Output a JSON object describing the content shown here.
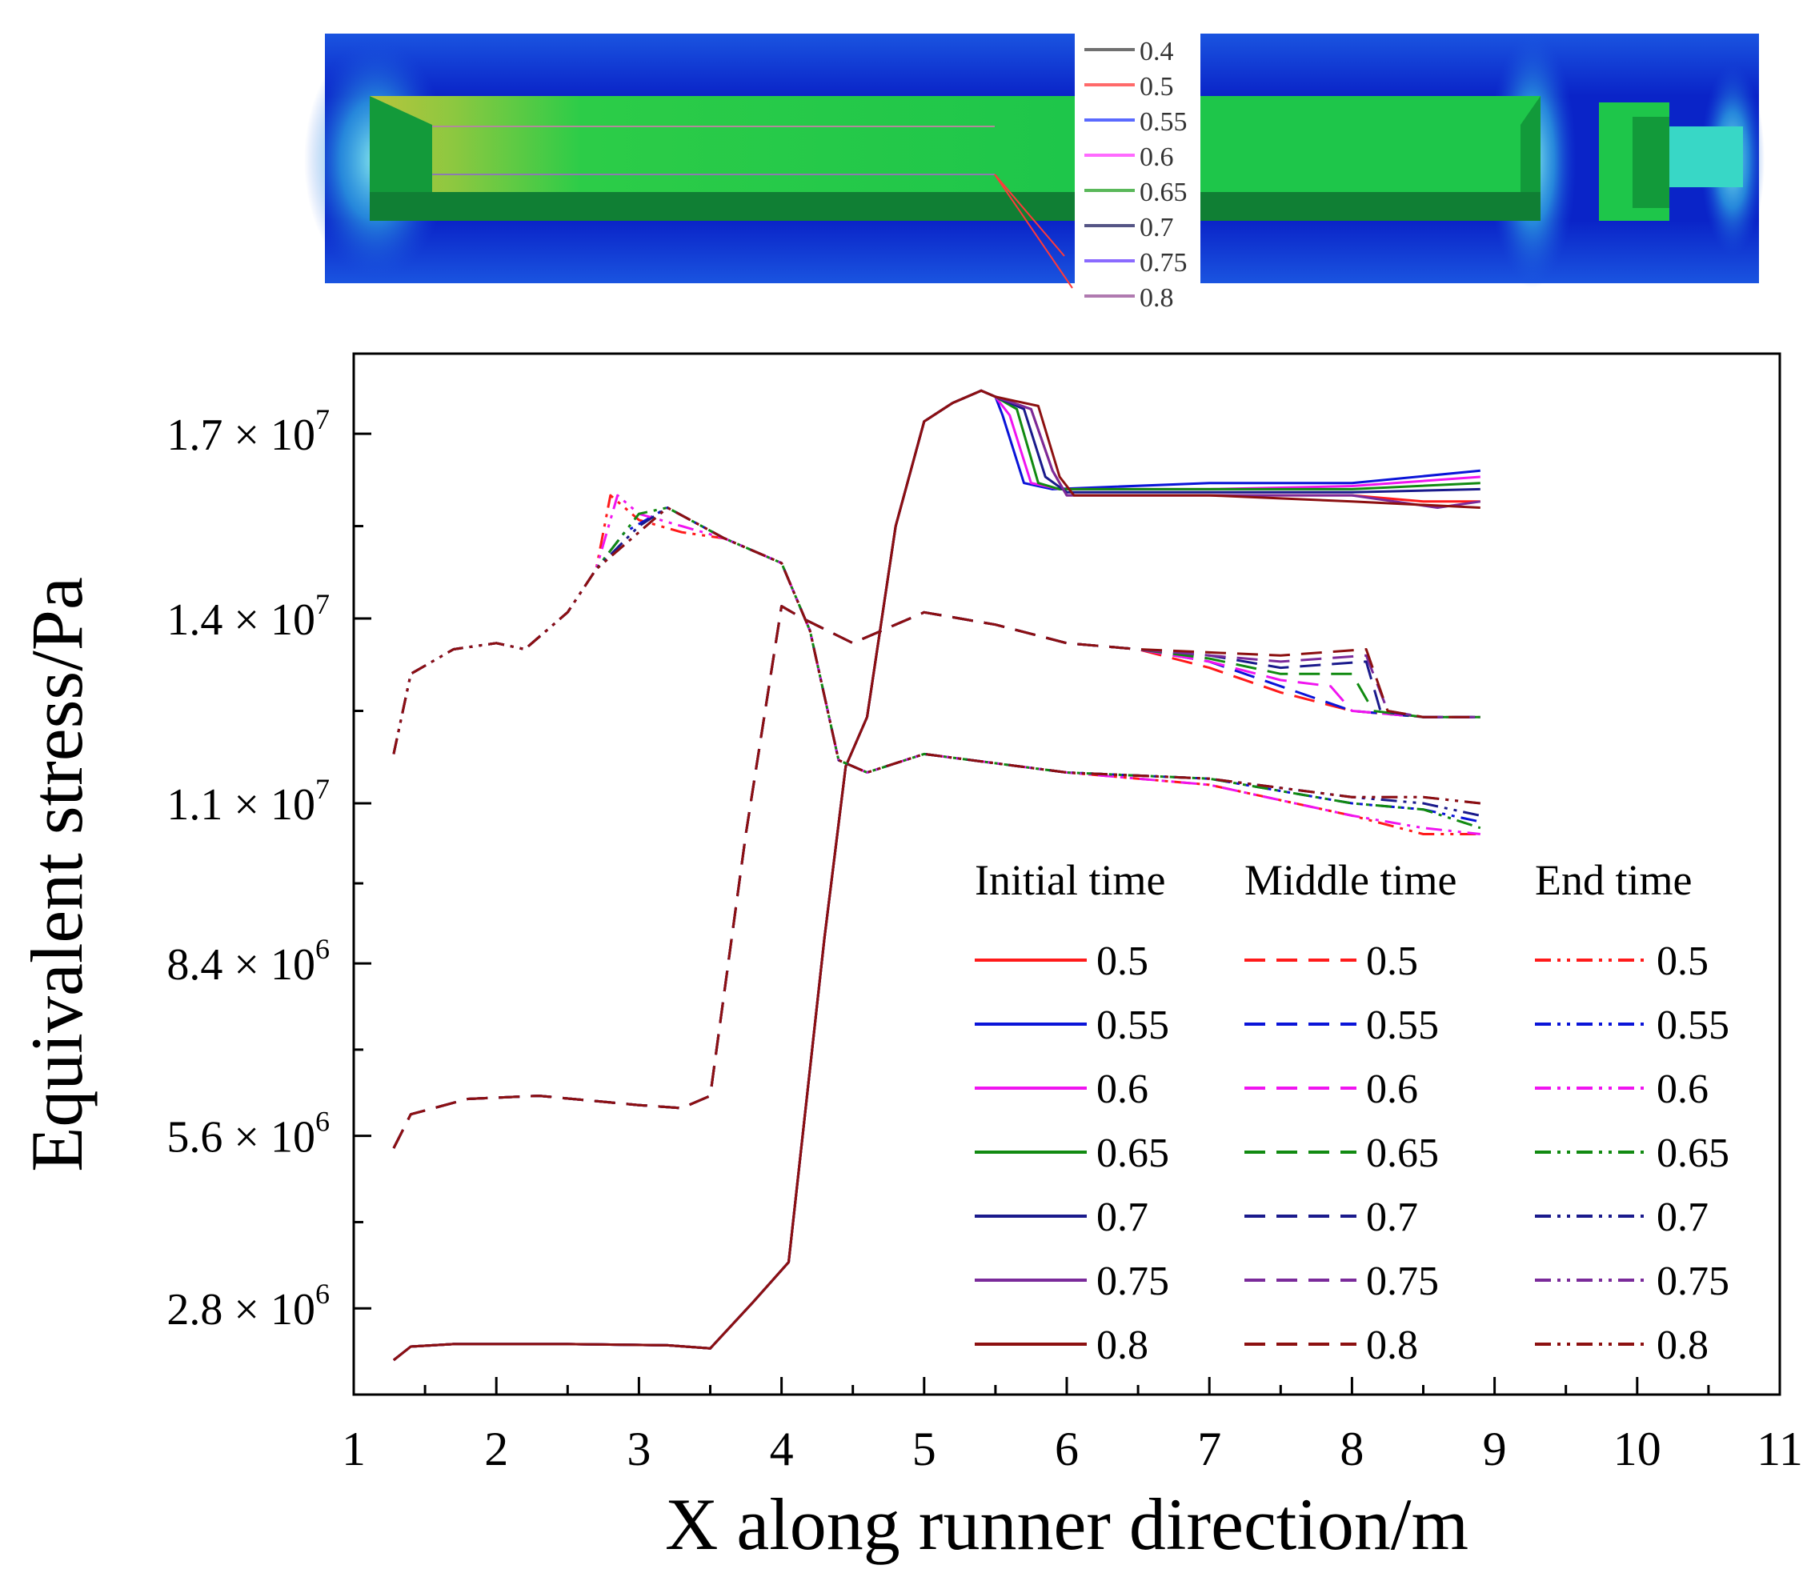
{
  "chart_data": {
    "type": "line",
    "xlabel": "X along runner direction/m",
    "ylabel": "Equivalent stress/Pa",
    "xlim": [
      1,
      11
    ],
    "ylim": [
      1400000.0,
      18300000.0
    ],
    "x_ticks": [
      {
        "value": 1,
        "label": "1"
      },
      {
        "value": 2,
        "label": "2"
      },
      {
        "value": 3,
        "label": "3"
      },
      {
        "value": 4,
        "label": "4"
      },
      {
        "value": 5,
        "label": "5"
      },
      {
        "value": 6,
        "label": "6"
      },
      {
        "value": 7,
        "label": "7"
      },
      {
        "value": 8,
        "label": "8"
      },
      {
        "value": 9,
        "label": "9"
      },
      {
        "value": 10,
        "label": "10"
      },
      {
        "value": 11,
        "label": "11"
      }
    ],
    "y_ticks": [
      {
        "value": 2800000,
        "mant": "2.8",
        "exp": "6"
      },
      {
        "value": 5600000,
        "mant": "5.6",
        "exp": "6"
      },
      {
        "value": 8400000,
        "mant": "8.4",
        "exp": "6"
      },
      {
        "value": 11000000,
        "mant": "1.1",
        "exp": "7"
      },
      {
        "value": 14000000,
        "mant": "1.4",
        "exp": "7"
      },
      {
        "value": 17000000,
        "mant": "1.7",
        "exp": "7"
      }
    ],
    "times_symbol": "×",
    "exp_base": "10",
    "grid": false,
    "legend_position": "bottom-right",
    "levels": [
      "0.5",
      "0.55",
      "0.6",
      "0.65",
      "0.7",
      "0.75",
      "0.8"
    ],
    "level_colors": [
      "#ff1a1a",
      "#0a14d8",
      "#f014f0",
      "#118a11",
      "#1a1a8c",
      "#7a2a9a",
      "#8c1010"
    ],
    "groups": [
      {
        "title": "Initial time",
        "style": "solid",
        "base": [
          [
            1.28,
            1960000.0
          ],
          [
            1.4,
            2180000.0
          ],
          [
            1.7,
            2220000.0
          ],
          [
            2.5,
            2220000.0
          ],
          [
            3.2,
            2200000.0
          ],
          [
            3.5,
            2150000.0
          ],
          [
            3.8,
            2900000.0
          ],
          [
            4.05,
            3550000.0
          ],
          [
            4.3,
            8800000.0
          ],
          [
            4.45,
            11600000.0
          ],
          [
            4.6,
            12400000.0
          ],
          [
            4.8,
            15500000.0
          ],
          [
            5.0,
            17200000.0
          ],
          [
            5.2,
            17500000.0
          ],
          [
            5.4,
            17700000.0
          ],
          [
            5.5,
            17600000.0
          ]
        ],
        "variants": [
          [
            [
              5.75,
              17400000.0
            ],
            [
              5.9,
              16400000.0
            ],
            [
              6.0,
              16000000.0
            ],
            [
              7.0,
              16000000.0
            ],
            [
              8.0,
              16000000.0
            ],
            [
              8.5,
              15900000.0
            ],
            [
              8.9,
              15900000.0
            ]
          ],
          [
            [
              5.55,
              17300000.0
            ],
            [
              5.7,
              16200000.0
            ],
            [
              5.9,
              16100000.0
            ],
            [
              7.0,
              16200000.0
            ],
            [
              8.0,
              16200000.0
            ],
            [
              8.9,
              16400000.0
            ]
          ],
          [
            [
              5.6,
              17300000.0
            ],
            [
              5.75,
              16200000.0
            ],
            [
              5.95,
              16100000.0
            ],
            [
              7.0,
              16100000.0
            ],
            [
              8.0,
              16150000.0
            ],
            [
              8.9,
              16300000.0
            ]
          ],
          [
            [
              5.65,
              17400000.0
            ],
            [
              5.8,
              16200000.0
            ],
            [
              5.95,
              16100000.0
            ],
            [
              7.0,
              16100000.0
            ],
            [
              8.0,
              16100000.0
            ],
            [
              8.9,
              16200000.0
            ]
          ],
          [
            [
              5.7,
              17400000.0
            ],
            [
              5.85,
              16300000.0
            ],
            [
              6.0,
              16050000.0
            ],
            [
              7.0,
              16050000.0
            ],
            [
              8.0,
              16050000.0
            ],
            [
              8.9,
              16100000.0
            ]
          ],
          [
            [
              5.75,
              17400000.0
            ],
            [
              5.9,
              16400000.0
            ],
            [
              6.0,
              16000000.0
            ],
            [
              7.0,
              16000000.0
            ],
            [
              8.0,
              16000000.0
            ],
            [
              8.6,
              15800000.0
            ],
            [
              8.9,
              15900000.0
            ]
          ],
          [
            [
              5.8,
              17450000.0
            ],
            [
              5.95,
              16300000.0
            ],
            [
              6.05,
              16000000.0
            ],
            [
              7.0,
              16000000.0
            ],
            [
              8.0,
              15900000.0
            ],
            [
              8.9,
              15800000.0
            ]
          ]
        ]
      },
      {
        "title": "Middle time",
        "style": "dashed",
        "base": [
          [
            1.28,
            5400000.0
          ],
          [
            1.4,
            5950000.0
          ],
          [
            1.8,
            6200000.0
          ],
          [
            2.3,
            6250000.0
          ],
          [
            3.0,
            6100000.0
          ],
          [
            3.3,
            6050000.0
          ],
          [
            3.5,
            6250000.0
          ],
          [
            3.75,
            10500000.0
          ],
          [
            4.0,
            14200000.0
          ],
          [
            4.15,
            14000000.0
          ],
          [
            4.5,
            13600000.0
          ],
          [
            5.0,
            14100000.0
          ],
          [
            5.5,
            13900000.0
          ],
          [
            6.0,
            13600000.0
          ],
          [
            6.5,
            13500000.0
          ]
        ],
        "variants": [
          [
            [
              7.0,
              13200000.0
            ],
            [
              7.5,
              12800000.0
            ],
            [
              8.0,
              12500000.0
            ],
            [
              8.5,
              12400000.0
            ],
            [
              8.9,
              12400000.0
            ]
          ],
          [
            [
              7.0,
              13300000.0
            ],
            [
              7.5,
              12900000.0
            ],
            [
              8.0,
              12500000.0
            ],
            [
              8.5,
              12400000.0
            ],
            [
              8.9,
              12400000.0
            ]
          ],
          [
            [
              7.0,
              13300000.0
            ],
            [
              7.5,
              13000000.0
            ],
            [
              7.85,
              12900000.0
            ],
            [
              8.0,
              12500000.0
            ],
            [
              8.5,
              12400000.0
            ],
            [
              8.9,
              12400000.0
            ]
          ],
          [
            [
              7.0,
              13350000.0
            ],
            [
              7.5,
              13100000.0
            ],
            [
              8.0,
              13100000.0
            ],
            [
              8.15,
              12500000.0
            ],
            [
              8.5,
              12400000.0
            ],
            [
              8.9,
              12400000.0
            ]
          ],
          [
            [
              7.0,
              13400000.0
            ],
            [
              7.5,
              13200000.0
            ],
            [
              8.1,
              13300000.0
            ],
            [
              8.2,
              12500000.0
            ],
            [
              8.5,
              12400000.0
            ],
            [
              8.9,
              12400000.0
            ]
          ],
          [
            [
              7.0,
              13400000.0
            ],
            [
              7.5,
              13300000.0
            ],
            [
              8.1,
              13400000.0
            ],
            [
              8.25,
              12500000.0
            ],
            [
              8.5,
              12400000.0
            ],
            [
              8.9,
              12400000.0
            ]
          ],
          [
            [
              7.0,
              13450000.0
            ],
            [
              7.5,
              13400000.0
            ],
            [
              8.1,
              13500000.0
            ],
            [
              8.25,
              12500000.0
            ],
            [
              8.5,
              12400000.0
            ],
            [
              8.9,
              12400000.0
            ]
          ]
        ]
      },
      {
        "title": "End time",
        "style": "dashdot",
        "base": [
          [
            1.28,
            11800000.0
          ],
          [
            1.4,
            13100000.0
          ],
          [
            1.7,
            13500000.0
          ],
          [
            2.0,
            13600000.0
          ],
          [
            2.2,
            13500000.0
          ],
          [
            2.5,
            14100000.0
          ],
          [
            2.7,
            14800000.0
          ]
        ],
        "variants": [
          [
            [
              2.8,
              16000000.0
            ],
            [
              3.0,
              15600000.0
            ],
            [
              3.3,
              15400000.0
            ],
            [
              3.6,
              15300000.0
            ],
            [
              4.0,
              14900000.0
            ],
            [
              4.2,
              13800000.0
            ],
            [
              4.4,
              11700000.0
            ],
            [
              4.6,
              11500000.0
            ],
            [
              5.0,
              11800000.0
            ],
            [
              6.0,
              11500000.0
            ],
            [
              7.0,
              11300000.0
            ],
            [
              8.0,
              10800000.0
            ],
            [
              8.5,
              10500000.0
            ],
            [
              8.9,
              10500000.0
            ]
          ],
          [
            [
              2.9,
              15400000.0
            ],
            [
              3.2,
              15800000.0
            ],
            [
              3.6,
              15300000.0
            ],
            [
              4.0,
              14900000.0
            ],
            [
              4.2,
              13800000.0
            ],
            [
              4.4,
              11700000.0
            ],
            [
              4.6,
              11500000.0
            ],
            [
              5.0,
              11800000.0
            ],
            [
              6.0,
              11500000.0
            ],
            [
              7.0,
              11400000.0
            ],
            [
              8.0,
              11000000.0
            ],
            [
              8.5,
              10900000.0
            ],
            [
              8.9,
              10700000.0
            ]
          ],
          [
            [
              2.85,
              16000000.0
            ],
            [
              3.0,
              15700000.0
            ],
            [
              3.3,
              15500000.0
            ],
            [
              3.6,
              15300000.0
            ],
            [
              4.0,
              14900000.0
            ],
            [
              4.2,
              13800000.0
            ],
            [
              4.4,
              11700000.0
            ],
            [
              4.6,
              11500000.0
            ],
            [
              5.0,
              11800000.0
            ],
            [
              6.0,
              11500000.0
            ],
            [
              7.0,
              11300000.0
            ],
            [
              8.0,
              10800000.0
            ],
            [
              8.5,
              10600000.0
            ],
            [
              8.9,
              10500000.0
            ]
          ],
          [
            [
              3.0,
              15700000.0
            ],
            [
              3.2,
              15800000.0
            ],
            [
              3.6,
              15300000.0
            ],
            [
              4.0,
              14900000.0
            ],
            [
              4.2,
              13800000.0
            ],
            [
              4.4,
              11700000.0
            ],
            [
              4.6,
              11500000.0
            ],
            [
              5.0,
              11800000.0
            ],
            [
              6.0,
              11500000.0
            ],
            [
              7.0,
              11400000.0
            ],
            [
              8.0,
              11000000.0
            ],
            [
              8.5,
              10900000.0
            ],
            [
              8.9,
              10600000.0
            ]
          ],
          [
            [
              3.0,
              15500000.0
            ],
            [
              3.2,
              15800000.0
            ],
            [
              3.6,
              15300000.0
            ],
            [
              4.0,
              14900000.0
            ],
            [
              4.2,
              13800000.0
            ],
            [
              4.4,
              11700000.0
            ],
            [
              4.6,
              11500000.0
            ],
            [
              5.0,
              11800000.0
            ],
            [
              6.0,
              11500000.0
            ],
            [
              7.0,
              11400000.0
            ],
            [
              8.0,
              11100000.0
            ],
            [
              8.5,
              11000000.0
            ],
            [
              8.9,
              10800000.0
            ]
          ],
          [
            [
              3.0,
              15400000.0
            ],
            [
              3.2,
              15800000.0
            ],
            [
              3.6,
              15300000.0
            ],
            [
              4.0,
              14900000.0
            ],
            [
              4.2,
              13800000.0
            ],
            [
              4.4,
              11700000.0
            ],
            [
              4.6,
              11500000.0
            ],
            [
              5.0,
              11800000.0
            ],
            [
              6.0,
              11500000.0
            ],
            [
              7.0,
              11400000.0
            ],
            [
              8.0,
              11100000.0
            ],
            [
              8.5,
              11100000.0
            ],
            [
              8.9,
              11000000.0
            ]
          ],
          [
            [
              3.0,
              15400000.0
            ],
            [
              3.2,
              15800000.0
            ],
            [
              3.6,
              15300000.0
            ],
            [
              4.0,
              14900000.0
            ],
            [
              4.2,
              13800000.0
            ],
            [
              4.4,
              11700000.0
            ],
            [
              4.6,
              11500000.0
            ],
            [
              5.0,
              11800000.0
            ],
            [
              6.0,
              11500000.0
            ],
            [
              7.0,
              11400000.0
            ],
            [
              8.0,
              11100000.0
            ],
            [
              8.5,
              11100000.0
            ],
            [
              8.9,
              11000000.0
            ]
          ]
        ]
      }
    ]
  },
  "contour": {
    "colors": {
      "outer": "#0a24c8",
      "outer_edge": "#1e6ee8",
      "halo": "#38d7e6",
      "core": "#1ec64a",
      "core_dark": "#12a23c",
      "warm": "#b4c840"
    },
    "legend_items": [
      {
        "label": "0.4",
        "color": "#707070"
      },
      {
        "label": "0.5",
        "color": "#ff6a6a"
      },
      {
        "label": "0.55",
        "color": "#5a6aff"
      },
      {
        "label": "0.6",
        "color": "#ff6aff"
      },
      {
        "label": "0.65",
        "color": "#5ab85a"
      },
      {
        "label": "0.7",
        "color": "#555585"
      },
      {
        "label": "0.75",
        "color": "#8a6aff"
      },
      {
        "label": "0.8",
        "color": "#b07ab0"
      }
    ]
  }
}
